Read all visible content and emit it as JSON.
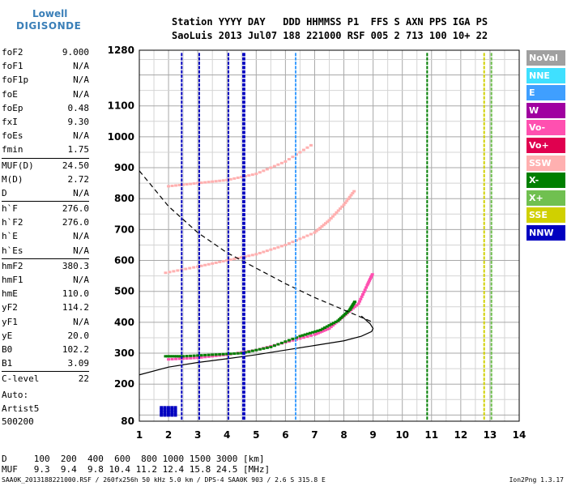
{
  "logo": {
    "line1": "Lowell",
    "line2": "DIGISONDE"
  },
  "header": {
    "row1": "Station YYYY DAY   DDD HHMMSS P1  FFS S AXN PPS IGA PS",
    "row2": "SaoLuis 2013 Jul07 188 221000 RSF 005 2 713 100 10+ 22"
  },
  "params": [
    {
      "group": [
        {
          "label": "foF2",
          "value": "9.000"
        },
        {
          "label": "foF1",
          "value": "N/A"
        },
        {
          "label": "foF1p",
          "value": "N/A"
        },
        {
          "label": "foE",
          "value": "N/A"
        },
        {
          "label": "foEp",
          "value": "0.48"
        },
        {
          "label": "fxI",
          "value": "9.30"
        },
        {
          "label": "foEs",
          "value": "N/A"
        },
        {
          "label": "fmin",
          "value": "1.75"
        }
      ]
    },
    {
      "group": [
        {
          "label": "MUF(D)",
          "value": "24.50"
        },
        {
          "label": "M(D)",
          "value": "2.72"
        },
        {
          "label": "D",
          "value": "N/A"
        }
      ]
    },
    {
      "group": [
        {
          "label": "h`F",
          "value": "276.0"
        },
        {
          "label": "h`F2",
          "value": "276.0"
        },
        {
          "label": "h`E",
          "value": "N/A"
        },
        {
          "label": "h`Es",
          "value": "N/A"
        }
      ]
    },
    {
      "group": [
        {
          "label": "hmF2",
          "value": "380.3"
        },
        {
          "label": "hmF1",
          "value": "N/A"
        },
        {
          "label": "hmE",
          "value": "110.0"
        },
        {
          "label": "yF2",
          "value": "114.2"
        },
        {
          "label": "yF1",
          "value": "N/A"
        },
        {
          "label": "yE",
          "value": "20.0"
        },
        {
          "label": "B0",
          "value": "102.2"
        },
        {
          "label": "B1",
          "value": "3.09"
        }
      ]
    },
    {
      "group": [
        {
          "label": "C-level",
          "value": "22"
        }
      ]
    }
  ],
  "auto": {
    "line1": "Auto:",
    "line2": "Artist5",
    "line3": "500200"
  },
  "legend": [
    {
      "label": "NoVal",
      "color": "#a0a0a0"
    },
    {
      "label": "NNE",
      "color": "#3fe0ff"
    },
    {
      "label": "E",
      "color": "#3f9fff"
    },
    {
      "label": "W",
      "color": "#a000a0"
    },
    {
      "label": "Vo-",
      "color": "#ff50b0"
    },
    {
      "label": "Vo+",
      "color": "#e0004f"
    },
    {
      "label": "SSW",
      "color": "#ffb0b0"
    },
    {
      "label": "X-",
      "color": "#007f00"
    },
    {
      "label": "X+",
      "color": "#70c050"
    },
    {
      "label": "SSE",
      "color": "#d0d000"
    },
    {
      "label": "NNW",
      "color": "#0000c0"
    }
  ],
  "footer": {
    "dist": "D     100  200  400  600  800 1000 1500 3000 [km]",
    "muf": "MUF   9.3  9.4  9.8 10.4 11.2 12.4 15.8 24.5 [MHz]",
    "file": "SAA0K_2013188221000.RSF / 260fx256h 50 kHz 5.0 km / DPS-4 SAA0K 903 / 2.6 S 315.8 E",
    "version": "Ion2Png 1.3.17"
  },
  "chart_data": {
    "type": "scatter",
    "xlim": [
      1,
      14
    ],
    "ylim": [
      80,
      1280
    ],
    "xticks": [
      1,
      2,
      3,
      4,
      5,
      6,
      7,
      8,
      9,
      10,
      11,
      12,
      13,
      14
    ],
    "yticks": [
      80,
      200,
      300,
      400,
      500,
      600,
      700,
      800,
      900,
      1000,
      1100,
      1280
    ],
    "series": [
      {
        "name": "o-trace (Vo-)",
        "color": "#ff50b0",
        "x": [
          2.0,
          3.0,
          4.0,
          5.0,
          6.0,
          7.0,
          7.5,
          8.0,
          8.5,
          8.8,
          9.0
        ],
        "y": [
          280,
          285,
          295,
          310,
          335,
          360,
          380,
          420,
          460,
          520,
          560
        ]
      },
      {
        "name": "x-trace (X-)",
        "color": "#007f00",
        "x": [
          1.9,
          2.5,
          3.5,
          4.5,
          5.5,
          6.5,
          7.2,
          7.8,
          8.2,
          8.4
        ],
        "y": [
          290,
          290,
          295,
          300,
          320,
          355,
          375,
          405,
          440,
          470
        ]
      },
      {
        "name": "2nd hop",
        "color": "#ffb0b0",
        "x": [
          1.9,
          3.0,
          4.0,
          5.0,
          6.0,
          7.0,
          7.5,
          8.0,
          8.4
        ],
        "y": [
          560,
          580,
          600,
          620,
          650,
          690,
          730,
          780,
          830
        ]
      },
      {
        "name": "3rd hop",
        "color": "#ffb0b0",
        "x": [
          2.0,
          3.0,
          4.0,
          5.0,
          6.0,
          7.0
        ],
        "y": [
          840,
          850,
          860,
          880,
          920,
          980
        ]
      },
      {
        "name": "profile",
        "color": "#000000",
        "x": [
          1.0,
          2.0,
          3.0,
          4.0,
          5.0,
          6.0,
          7.0,
          8.0,
          8.6,
          8.95,
          9.0,
          8.9,
          8.6
        ],
        "y": [
          230,
          255,
          270,
          282,
          295,
          310,
          325,
          340,
          355,
          370,
          380,
          395,
          420
        ]
      },
      {
        "name": "MUF curve",
        "color": "#000000",
        "x": [
          1.0,
          2.0,
          3.0,
          4.0,
          5.0,
          6.0,
          7.0,
          8.0,
          9.0
        ],
        "y": [
          890,
          775,
          690,
          625,
          575,
          525,
          480,
          440,
          400
        ]
      }
    ]
  }
}
